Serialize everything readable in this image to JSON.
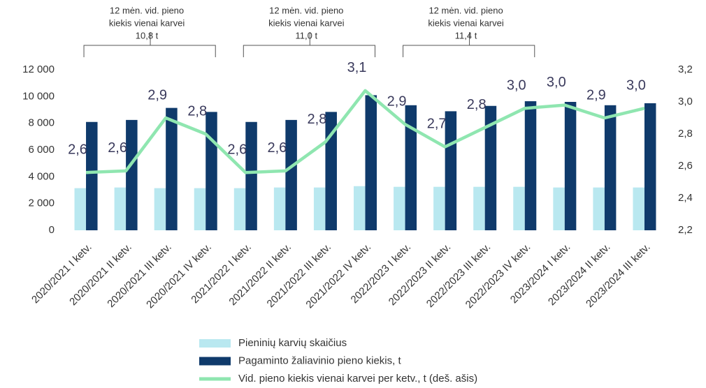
{
  "chart_data": {
    "type": "bar_line",
    "annotations": [
      {
        "lines": [
          "12 mėn. vid. pieno",
          "kiekis vienai karvei",
          "10,8 t"
        ]
      },
      {
        "lines": [
          "12 mėn. vid. pieno",
          "kiekis vienai karvei",
          "11,0 t"
        ]
      },
      {
        "lines": [
          "12 mėn. vid. pieno",
          "kiekis vienai karvei",
          "11,4 t"
        ]
      }
    ],
    "categories": [
      "2020/2021 I ketv.",
      "2020/2021 II ketv.",
      "2020/2021 III ketv.",
      "2020/2021 IV ketv.",
      "2021/2022 I ketv.",
      "2021/2022 II ketv.",
      "2021/2022 III ketv.",
      "2021/2022 IV ketv.",
      "2022/2023 I ketv.",
      "2022/2023 II ketv.",
      "2022/2023 III ketv.",
      "2022/2023 IV ketv.",
      "2023/2024 I ketv.",
      "2023/2024 II ketv.",
      "2023/2024 III ketv."
    ],
    "series": [
      {
        "name": "Pieninių karvių skaičius",
        "color": "#b9e8f0",
        "kind": "bar",
        "values": [
          3150,
          3200,
          3150,
          3150,
          3150,
          3200,
          3200,
          3300,
          3250,
          3250,
          3250,
          3250,
          3200,
          3200,
          3200
        ]
      },
      {
        "name": "Pagaminto žaliavinio pieno kiekis, t",
        "color": "#0f3a6b",
        "kind": "bar",
        "values": [
          8100,
          8250,
          9150,
          8850,
          8100,
          8250,
          8850,
          10100,
          9350,
          8900,
          9300,
          9650,
          9600,
          9350,
          9500
        ]
      },
      {
        "name": "Vid. pieno kiekis vienai karvei per ketv., t (deš. ašis)",
        "color": "#8fe6b0",
        "kind": "line",
        "axis": "y2",
        "values": [
          2.56,
          2.57,
          2.9,
          2.8,
          2.56,
          2.57,
          2.75,
          3.07,
          2.86,
          2.72,
          2.84,
          2.96,
          2.98,
          2.9,
          2.96
        ],
        "value_labels": [
          "2,6",
          "2,6",
          "2,9",
          "2,8",
          "2,6",
          "2,6",
          "2,8",
          "3,1",
          "2,9",
          "2,7",
          "2,8",
          "3,0",
          "3,0",
          "2,9",
          "3,0"
        ]
      }
    ],
    "ylim": [
      0,
      12000
    ],
    "yticks": [
      0,
      {
        "value": 2000,
        "label": "2 000"
      },
      {
        "value": 4000,
        "label": "4 000"
      },
      {
        "value": 6000,
        "label": "6 000"
      },
      {
        "value": 8000,
        "label": "8 000"
      },
      {
        "value": 10000,
        "label": "10 000"
      },
      {
        "value": 12000,
        "label": "12 000"
      }
    ],
    "y2lim": [
      2.2,
      3.2
    ],
    "y2ticks": [
      {
        "value": 2.2,
        "label": "2,2"
      },
      {
        "value": 2.4,
        "label": "2,4"
      },
      {
        "value": 2.6,
        "label": "2,6"
      },
      {
        "value": 2.8,
        "label": "2,8"
      },
      {
        "value": 3.0,
        "label": "3,0"
      },
      {
        "value": 3.2,
        "label": "3,2"
      }
    ],
    "grid": false,
    "legend": "bottom"
  }
}
